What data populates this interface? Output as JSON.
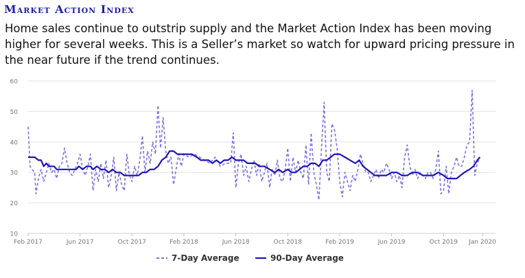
{
  "header": {
    "title": "Market Action Index",
    "description": "Home sales continue to outstrip supply and the Market Action Index has been moving higher for several weeks. This is a Seller’s market so watch for upward pricing pressure in the near future if the trend continues."
  },
  "colors": {
    "seven_day": "#7b6fe6",
    "ninety_day": "#1c14b8",
    "grid": "#e2e2e2",
    "axis_text": "#777777"
  },
  "chart_data": {
    "type": "line",
    "title": "Market Action Index",
    "xlabel": "",
    "ylabel": "",
    "ylim": [
      10,
      60
    ],
    "yticks": [
      10,
      20,
      30,
      40,
      50,
      60
    ],
    "grid": true,
    "legend": "bottom",
    "x_range": [
      0,
      36
    ],
    "x_ticks": [
      {
        "label": "Feb 2017",
        "month": 0
      },
      {
        "label": "Jun 2017",
        "month": 4
      },
      {
        "label": "Oct 2017",
        "month": 8
      },
      {
        "label": "Feb 2018",
        "month": 12
      },
      {
        "label": "Jun 2018",
        "month": 16
      },
      {
        "label": "Oct 2018",
        "month": 20
      },
      {
        "label": "Feb 2019",
        "month": 24
      },
      {
        "label": "Jun 2019",
        "month": 28
      },
      {
        "label": "Oct 2019",
        "month": 32
      },
      {
        "label": "Jan 2020",
        "month": 35
      }
    ],
    "series": [
      {
        "name": "7-Day Average",
        "style": "dashed",
        "points": [
          [
            0,
            45
          ],
          [
            0.15,
            32
          ],
          [
            0.3,
            31
          ],
          [
            0.5,
            30
          ],
          [
            0.6,
            23
          ],
          [
            0.8,
            28
          ],
          [
            1.0,
            31
          ],
          [
            1.2,
            27
          ],
          [
            1.4,
            30
          ],
          [
            1.6,
            33
          ],
          [
            1.8,
            30
          ],
          [
            2.0,
            31
          ],
          [
            2.2,
            28
          ],
          [
            2.4,
            32
          ],
          [
            2.6,
            33
          ],
          [
            2.8,
            38
          ],
          [
            3.0,
            33
          ],
          [
            3.2,
            30
          ],
          [
            3.4,
            29
          ],
          [
            3.6,
            31
          ],
          [
            3.8,
            33
          ],
          [
            4.0,
            36
          ],
          [
            4.2,
            31
          ],
          [
            4.4,
            29
          ],
          [
            4.6,
            32
          ],
          [
            4.8,
            36
          ],
          [
            5.0,
            24
          ],
          [
            5.2,
            31
          ],
          [
            5.4,
            27
          ],
          [
            5.6,
            33
          ],
          [
            5.8,
            28
          ],
          [
            6.0,
            34
          ],
          [
            6.2,
            25
          ],
          [
            6.4,
            29
          ],
          [
            6.6,
            35
          ],
          [
            6.8,
            24
          ],
          [
            7.0,
            30
          ],
          [
            7.2,
            26
          ],
          [
            7.4,
            24
          ],
          [
            7.6,
            36
          ],
          [
            7.8,
            29
          ],
          [
            8.0,
            27
          ],
          [
            8.2,
            32
          ],
          [
            8.4,
            29
          ],
          [
            8.6,
            34
          ],
          [
            8.8,
            42
          ],
          [
            9.0,
            30
          ],
          [
            9.2,
            37
          ],
          [
            9.4,
            33
          ],
          [
            9.6,
            40
          ],
          [
            9.8,
            36
          ],
          [
            10.0,
            52
          ],
          [
            10.2,
            38
          ],
          [
            10.4,
            48
          ],
          [
            10.6,
            37
          ],
          [
            10.8,
            33
          ],
          [
            11.0,
            35
          ],
          [
            11.2,
            26
          ],
          [
            11.4,
            31
          ],
          [
            11.6,
            36
          ],
          [
            11.8,
            32
          ],
          [
            12.0,
            36
          ],
          [
            12.4,
            35
          ],
          [
            12.8,
            36
          ],
          [
            13.2,
            35
          ],
          [
            13.6,
            34
          ],
          [
            14.0,
            33
          ],
          [
            14.4,
            35
          ],
          [
            14.8,
            32
          ],
          [
            15.2,
            33
          ],
          [
            15.6,
            33
          ],
          [
            15.8,
            43
          ],
          [
            16.0,
            25
          ],
          [
            16.2,
            33
          ],
          [
            16.4,
            36
          ],
          [
            16.6,
            29
          ],
          [
            16.8,
            32
          ],
          [
            17.0,
            27
          ],
          [
            17.2,
            31
          ],
          [
            17.4,
            34
          ],
          [
            17.6,
            29
          ],
          [
            17.8,
            33
          ],
          [
            18.0,
            27
          ],
          [
            18.2,
            30
          ],
          [
            18.4,
            33
          ],
          [
            18.6,
            25
          ],
          [
            18.8,
            31
          ],
          [
            19.0,
            29
          ],
          [
            19.2,
            34
          ],
          [
            19.4,
            28
          ],
          [
            19.6,
            27
          ],
          [
            19.8,
            31
          ],
          [
            20.0,
            38
          ],
          [
            20.2,
            27
          ],
          [
            20.4,
            35
          ],
          [
            20.6,
            30
          ],
          [
            20.8,
            34
          ],
          [
            21.0,
            30
          ],
          [
            21.2,
            28
          ],
          [
            21.4,
            39
          ],
          [
            21.6,
            26
          ],
          [
            21.8,
            43
          ],
          [
            22.0,
            30
          ],
          [
            22.2,
            26
          ],
          [
            22.4,
            21
          ],
          [
            22.6,
            38
          ],
          [
            22.8,
            53
          ],
          [
            23.0,
            30
          ],
          [
            23.2,
            27
          ],
          [
            23.4,
            46
          ],
          [
            23.6,
            44
          ],
          [
            23.8,
            38
          ],
          [
            24.0,
            27
          ],
          [
            24.2,
            22
          ],
          [
            24.4,
            30
          ],
          [
            24.6,
            27
          ],
          [
            24.8,
            24
          ],
          [
            25.0,
            29
          ],
          [
            25.2,
            27
          ],
          [
            25.4,
            31
          ],
          [
            25.6,
            36
          ],
          [
            25.8,
            33
          ],
          [
            26.0,
            30
          ],
          [
            26.2,
            30
          ],
          [
            26.4,
            27
          ],
          [
            26.6,
            29
          ],
          [
            26.8,
            31
          ],
          [
            27.0,
            28
          ],
          [
            27.2,
            31
          ],
          [
            27.4,
            30
          ],
          [
            27.6,
            33
          ],
          [
            27.8,
            31
          ],
          [
            28.0,
            28
          ],
          [
            28.2,
            30
          ],
          [
            28.4,
            27
          ],
          [
            28.6,
            29
          ],
          [
            28.8,
            25
          ],
          [
            29.0,
            35
          ],
          [
            29.2,
            39
          ],
          [
            29.4,
            32
          ],
          [
            29.6,
            29
          ],
          [
            29.8,
            31
          ],
          [
            30.0,
            28
          ],
          [
            30.2,
            30
          ],
          [
            30.4,
            29
          ],
          [
            30.6,
            28
          ],
          [
            30.8,
            30
          ],
          [
            31.0,
            30
          ],
          [
            31.2,
            28
          ],
          [
            31.4,
            31
          ],
          [
            31.6,
            37
          ],
          [
            31.8,
            23
          ],
          [
            32.0,
            24
          ],
          [
            32.2,
            32
          ],
          [
            32.4,
            23
          ],
          [
            32.6,
            30
          ],
          [
            32.8,
            32
          ],
          [
            33.0,
            35
          ],
          [
            33.2,
            32
          ],
          [
            33.4,
            32
          ],
          [
            33.6,
            35
          ],
          [
            33.8,
            39
          ],
          [
            34.0,
            40
          ],
          [
            34.2,
            57
          ],
          [
            34.4,
            29
          ],
          [
            34.6,
            33
          ],
          [
            34.8,
            35
          ]
        ]
      },
      {
        "name": "90-Day Average",
        "style": "solid",
        "points": [
          [
            0,
            35
          ],
          [
            0.5,
            35
          ],
          [
            0.8,
            34
          ],
          [
            1.0,
            34
          ],
          [
            1.2,
            32
          ],
          [
            1.4,
            33
          ],
          [
            1.6,
            32
          ],
          [
            2.0,
            32
          ],
          [
            2.2,
            31
          ],
          [
            2.6,
            31
          ],
          [
            3.0,
            31
          ],
          [
            3.4,
            31
          ],
          [
            3.7,
            31
          ],
          [
            3.9,
            32
          ],
          [
            4.2,
            31
          ],
          [
            4.5,
            32
          ],
          [
            4.8,
            32
          ],
          [
            5.0,
            31
          ],
          [
            5.3,
            32
          ],
          [
            5.6,
            31
          ],
          [
            5.9,
            31
          ],
          [
            6.2,
            30
          ],
          [
            6.5,
            31
          ],
          [
            6.8,
            30
          ],
          [
            7.1,
            30
          ],
          [
            7.4,
            29
          ],
          [
            7.8,
            29
          ],
          [
            8.2,
            29
          ],
          [
            8.5,
            29
          ],
          [
            8.8,
            30
          ],
          [
            9.1,
            30
          ],
          [
            9.4,
            31
          ],
          [
            9.7,
            31
          ],
          [
            10.0,
            32
          ],
          [
            10.3,
            34
          ],
          [
            10.6,
            35
          ],
          [
            10.9,
            37
          ],
          [
            11.2,
            37
          ],
          [
            11.5,
            36
          ],
          [
            11.8,
            36
          ],
          [
            12.2,
            36
          ],
          [
            12.6,
            36
          ],
          [
            13.0,
            35
          ],
          [
            13.3,
            34
          ],
          [
            13.6,
            34
          ],
          [
            13.9,
            34
          ],
          [
            14.2,
            33
          ],
          [
            14.5,
            34
          ],
          [
            14.8,
            33
          ],
          [
            15.1,
            34
          ],
          [
            15.4,
            34
          ],
          [
            15.7,
            35
          ],
          [
            16.0,
            34
          ],
          [
            16.3,
            34
          ],
          [
            16.6,
            34
          ],
          [
            16.9,
            33
          ],
          [
            17.2,
            33
          ],
          [
            17.5,
            33
          ],
          [
            17.8,
            32
          ],
          [
            18.2,
            32
          ],
          [
            18.6,
            31
          ],
          [
            19.0,
            30
          ],
          [
            19.3,
            31
          ],
          [
            19.6,
            30
          ],
          [
            20.0,
            31
          ],
          [
            20.3,
            30
          ],
          [
            20.6,
            30
          ],
          [
            20.9,
            31
          ],
          [
            21.2,
            32
          ],
          [
            21.5,
            32
          ],
          [
            21.8,
            33
          ],
          [
            22.1,
            33
          ],
          [
            22.4,
            32
          ],
          [
            22.7,
            34
          ],
          [
            23.0,
            34
          ],
          [
            23.3,
            35
          ],
          [
            23.6,
            36
          ],
          [
            24.0,
            36
          ],
          [
            24.4,
            35
          ],
          [
            24.8,
            34
          ],
          [
            25.2,
            33
          ],
          [
            25.5,
            34
          ],
          [
            25.8,
            32
          ],
          [
            26.1,
            31
          ],
          [
            26.4,
            30
          ],
          [
            26.7,
            29
          ],
          [
            27.0,
            29
          ],
          [
            27.3,
            29
          ],
          [
            27.6,
            29
          ],
          [
            28.0,
            30
          ],
          [
            28.4,
            30
          ],
          [
            28.8,
            29
          ],
          [
            29.2,
            29
          ],
          [
            29.6,
            30
          ],
          [
            30.0,
            30
          ],
          [
            30.4,
            29
          ],
          [
            30.8,
            29
          ],
          [
            31.2,
            29
          ],
          [
            31.6,
            30
          ],
          [
            32.0,
            29
          ],
          [
            32.3,
            28
          ],
          [
            32.6,
            28
          ],
          [
            33.0,
            28
          ],
          [
            33.3,
            29
          ],
          [
            33.6,
            30
          ],
          [
            34.0,
            31
          ],
          [
            34.3,
            32
          ],
          [
            34.6,
            34
          ],
          [
            34.8,
            35
          ]
        ]
      }
    ]
  },
  "legend": {
    "seven_day": "7-Day Average",
    "ninety_day": "90-Day Average"
  }
}
